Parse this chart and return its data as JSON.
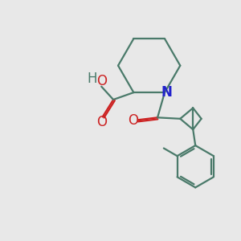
{
  "bg_color": "#e8e8e8",
  "bond_color": "#4a7a6a",
  "N_color": "#2222cc",
  "O_color": "#cc2222",
  "line_width": 1.6,
  "font_size": 12,
  "fig_size": [
    3.0,
    3.0
  ],
  "dpi": 100,
  "xlim": [
    0.0,
    10.0
  ],
  "ylim": [
    0.5,
    10.5
  ]
}
